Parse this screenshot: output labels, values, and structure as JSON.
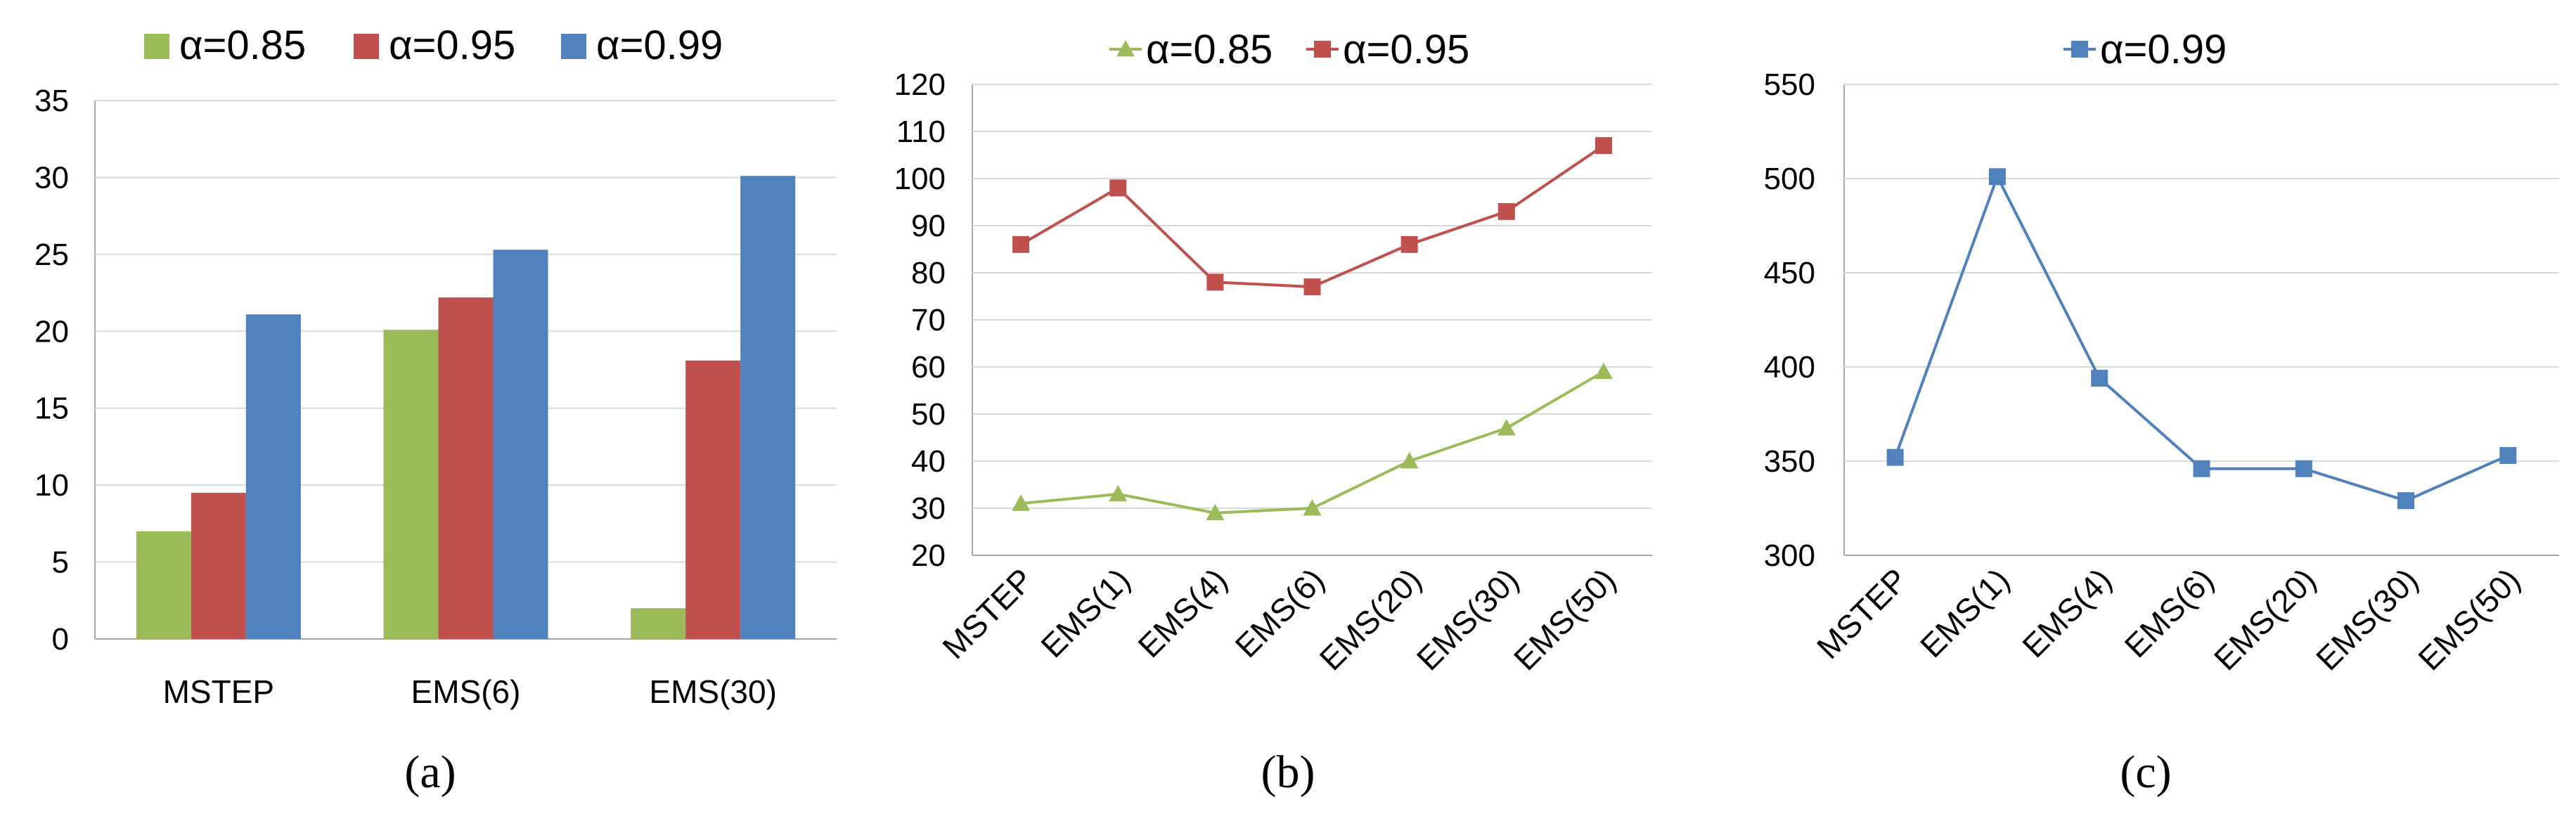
{
  "colors": {
    "green": "#9BBB59",
    "red": "#C0504D",
    "blue": "#4F81BD",
    "grid": "#D9D9D9",
    "axis": "#A6A6A6",
    "text": "#000000"
  },
  "chart_data": [
    {
      "type": "bar",
      "caption": "(a)",
      "categories": [
        "MSTEP",
        "EMS(6)",
        "EMS(30)"
      ],
      "series": [
        {
          "name": "α=0.85",
          "color": "#9BBB59",
          "values": [
            7,
            20.1,
            2
          ]
        },
        {
          "name": "α=0.95",
          "color": "#C0504D",
          "values": [
            9.5,
            22.2,
            18.1
          ]
        },
        {
          "name": "α=0.99",
          "color": "#4F81BD",
          "values": [
            21.1,
            25.3,
            30.1
          ]
        }
      ],
      "ylim": [
        0,
        35
      ],
      "yticks": [
        "0",
        "5",
        "10",
        "15",
        "20",
        "25",
        "30",
        "35"
      ],
      "grid": true,
      "legend": "top"
    },
    {
      "type": "line",
      "caption": "(b)",
      "categories": [
        "MSTEP",
        "EMS(1)",
        "EMS(4)",
        "EMS(6)",
        "EMS(20)",
        "EMS(30)",
        "EMS(50)"
      ],
      "series": [
        {
          "name": "α=0.85",
          "color": "#9BBB59",
          "marker": "triangle",
          "values": [
            31,
            33,
            29,
            30,
            40,
            47,
            59
          ]
        },
        {
          "name": "α=0.95",
          "color": "#C0504D",
          "marker": "square",
          "values": [
            86,
            98,
            78,
            77,
            86,
            93,
            107
          ]
        }
      ],
      "ylim": [
        20,
        120
      ],
      "yticks": [
        "20",
        "30",
        "40",
        "50",
        "60",
        "70",
        "80",
        "90",
        "100",
        "110",
        "120"
      ],
      "grid": true,
      "legend": "top"
    },
    {
      "type": "line",
      "caption": "(c)",
      "categories": [
        "MSTEP",
        "EMS(1)",
        "EMS(4)",
        "EMS(6)",
        "EMS(20)",
        "EMS(30)",
        "EMS(50)"
      ],
      "series": [
        {
          "name": "α=0.99",
          "color": "#4F81BD",
          "marker": "square",
          "values": [
            352,
            501,
            394,
            346,
            346,
            329,
            353
          ]
        }
      ],
      "ylim": [
        300,
        550
      ],
      "yticks": [
        "300",
        "350",
        "400",
        "450",
        "500",
        "550"
      ],
      "grid": true,
      "legend": "top"
    }
  ]
}
